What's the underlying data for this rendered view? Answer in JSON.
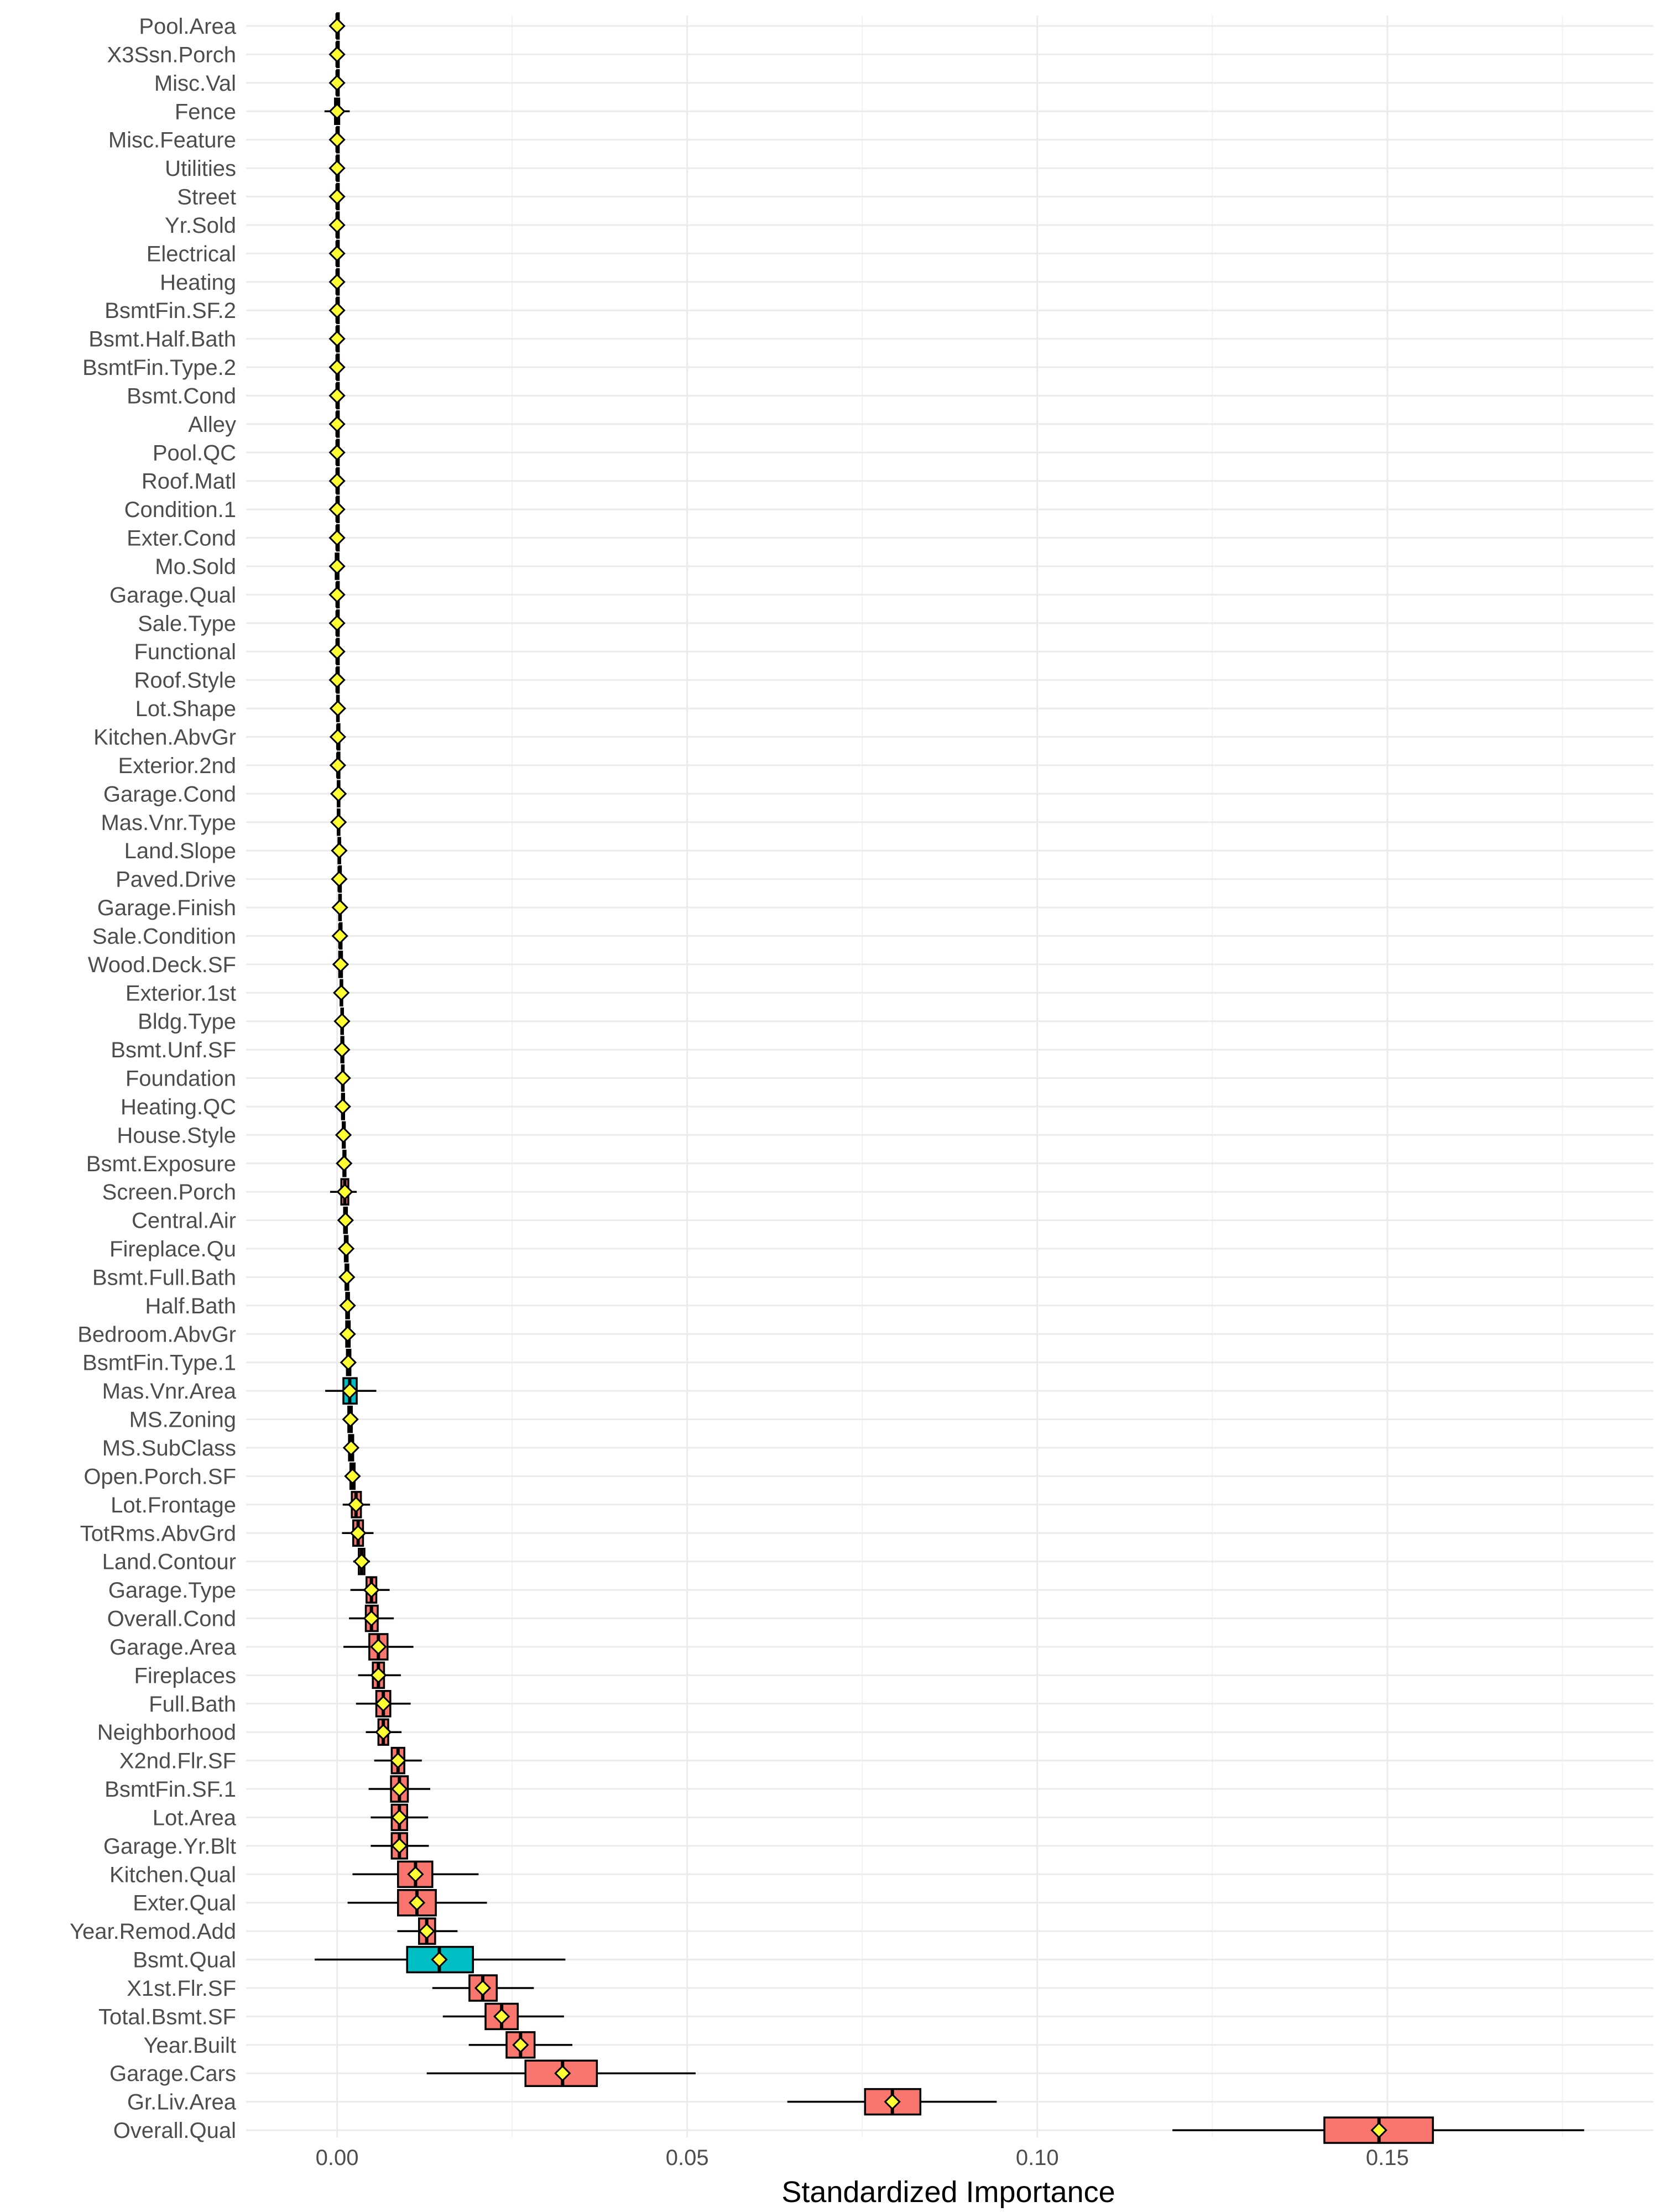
{
  "chart_data": {
    "type": "boxplot",
    "xlabel": "Standardized Importance",
    "ylabel": "",
    "xlim": [
      -0.013,
      0.188
    ],
    "xticks": [
      0.0,
      0.05,
      0.1,
      0.15
    ],
    "xtick_labels": [
      "0.00",
      "0.05",
      "0.10",
      "0.15"
    ],
    "colors": {
      "default": "#f8766d",
      "highlight": "#00bfc4",
      "mean_marker": "#ffff33"
    },
    "features": [
      {
        "name": "Pool.Area",
        "min": 0.0,
        "q1": 0.0,
        "median": 0.0,
        "q3": 0.0,
        "max": 0.0,
        "mean": 0.0,
        "group": "default"
      },
      {
        "name": "X3Ssn.Porch",
        "min": 0.0,
        "q1": 0.0,
        "median": 0.0,
        "q3": 0.0,
        "max": 0.0,
        "mean": 0.0,
        "group": "default"
      },
      {
        "name": "Misc.Val",
        "min": 0.0,
        "q1": 0.0,
        "median": 0.0,
        "q3": 0.0,
        "max": 0.0,
        "mean": 0.0,
        "group": "default"
      },
      {
        "name": "Fence",
        "min": -0.0018,
        "q1": -0.0003,
        "median": 0.0,
        "q3": 0.0003,
        "max": 0.0018,
        "mean": 0.0,
        "group": "default"
      },
      {
        "name": "Misc.Feature",
        "min": 0.0,
        "q1": 0.0,
        "median": 0.0,
        "q3": 0.0,
        "max": 0.0,
        "mean": 0.0,
        "group": "default"
      },
      {
        "name": "Utilities",
        "min": 0.0,
        "q1": 0.0,
        "median": 0.0,
        "q3": 0.0,
        "max": 0.0,
        "mean": 0.0,
        "group": "default"
      },
      {
        "name": "Street",
        "min": 0.0,
        "q1": 0.0,
        "median": 0.0,
        "q3": 0.0,
        "max": 0.0,
        "mean": 0.0,
        "group": "default"
      },
      {
        "name": "Yr.Sold",
        "min": 0.0,
        "q1": 0.0,
        "median": 0.0,
        "q3": 0.0,
        "max": 0.0,
        "mean": 0.0,
        "group": "default"
      },
      {
        "name": "Electrical",
        "min": 0.0,
        "q1": 0.0,
        "median": 0.0,
        "q3": 0.0,
        "max": 0.0,
        "mean": 0.0,
        "group": "default"
      },
      {
        "name": "Heating",
        "min": 0.0,
        "q1": 0.0,
        "median": 0.0,
        "q3": 0.0,
        "max": 0.0,
        "mean": 0.0,
        "group": "default"
      },
      {
        "name": "BsmtFin.SF.2",
        "min": 0.0,
        "q1": 0.0,
        "median": 0.0,
        "q3": 0.0,
        "max": 0.0,
        "mean": 0.0,
        "group": "default"
      },
      {
        "name": "Bsmt.Half.Bath",
        "min": 0.0,
        "q1": 0.0,
        "median": 0.0,
        "q3": 0.0,
        "max": 0.0,
        "mean": 0.0,
        "group": "default"
      },
      {
        "name": "BsmtFin.Type.2",
        "min": 0.0,
        "q1": 0.0,
        "median": 0.0,
        "q3": 0.0,
        "max": 0.0,
        "mean": 0.0,
        "group": "default"
      },
      {
        "name": "Bsmt.Cond",
        "min": 0.0,
        "q1": 0.0,
        "median": 0.0,
        "q3": 0.0,
        "max": 0.0,
        "mean": 0.0,
        "group": "default"
      },
      {
        "name": "Alley",
        "min": 0.0,
        "q1": 0.0,
        "median": 0.0,
        "q3": 0.0,
        "max": 0.0,
        "mean": 0.0,
        "group": "default"
      },
      {
        "name": "Pool.QC",
        "min": 0.0,
        "q1": 0.0,
        "median": 0.0,
        "q3": 0.0,
        "max": 0.0,
        "mean": 0.0,
        "group": "default"
      },
      {
        "name": "Roof.Matl",
        "min": 0.0,
        "q1": 0.0,
        "median": 0.0,
        "q3": 0.0,
        "max": 0.0,
        "mean": 0.0,
        "group": "default"
      },
      {
        "name": "Condition.1",
        "min": 0.0,
        "q1": 0.0,
        "median": 0.0,
        "q3": 0.0,
        "max": 0.0,
        "mean": 0.0,
        "group": "default"
      },
      {
        "name": "Exter.Cond",
        "min": 0.0,
        "q1": 0.0,
        "median": 0.0,
        "q3": 0.0,
        "max": 0.0,
        "mean": 0.0,
        "group": "default"
      },
      {
        "name": "Mo.Sold",
        "min": -0.0008,
        "q1": -0.0002,
        "median": 0.0,
        "q3": 0.0002,
        "max": 0.0008,
        "mean": 0.0,
        "group": "default"
      },
      {
        "name": "Garage.Qual",
        "min": 0.0,
        "q1": 0.0,
        "median": 0.0,
        "q3": 0.0,
        "max": 0.0,
        "mean": 0.0,
        "group": "default"
      },
      {
        "name": "Sale.Type",
        "min": 0.0,
        "q1": 0.0,
        "median": 0.0,
        "q3": 0.0,
        "max": 0.0,
        "mean": 0.0,
        "group": "default"
      },
      {
        "name": "Functional",
        "min": 0.0,
        "q1": 0.0,
        "median": 0.0,
        "q3": 0.0,
        "max": 0.0001,
        "mean": 0.0,
        "group": "default"
      },
      {
        "name": "Roof.Style",
        "min": 0.0,
        "q1": 0.0,
        "median": 0.0,
        "q3": 0.0,
        "max": 0.0001,
        "mean": 0.0,
        "group": "default"
      },
      {
        "name": "Lot.Shape",
        "min": 0.0,
        "q1": 0.0,
        "median": 0.0001,
        "q3": 0.0001,
        "max": 0.0002,
        "mean": 0.0001,
        "group": "default"
      },
      {
        "name": "Kitchen.AbvGr",
        "min": 0.0,
        "q1": 0.0001,
        "median": 0.0001,
        "q3": 0.0001,
        "max": 0.0002,
        "mean": 0.0001,
        "group": "default"
      },
      {
        "name": "Exterior.2nd",
        "min": 0.0,
        "q1": 0.0001,
        "median": 0.0001,
        "q3": 0.0002,
        "max": 0.0003,
        "mean": 0.0001,
        "group": "default"
      },
      {
        "name": "Garage.Cond",
        "min": 0.0,
        "q1": 0.0001,
        "median": 0.0002,
        "q3": 0.0002,
        "max": 0.0003,
        "mean": 0.0002,
        "group": "default"
      },
      {
        "name": "Mas.Vnr.Type",
        "min": 0.0,
        "q1": 0.0001,
        "median": 0.0002,
        "q3": 0.0002,
        "max": 0.0004,
        "mean": 0.0002,
        "group": "default"
      },
      {
        "name": "Land.Slope",
        "min": 0.0,
        "q1": 0.0002,
        "median": 0.0003,
        "q3": 0.0003,
        "max": 0.0005,
        "mean": 0.0003,
        "group": "default"
      },
      {
        "name": "Paved.Drive",
        "min": 0.0001,
        "q1": 0.0003,
        "median": 0.0003,
        "q3": 0.0004,
        "max": 0.0006,
        "mean": 0.0003,
        "group": "default"
      },
      {
        "name": "Garage.Finish",
        "min": 0.0001,
        "q1": 0.0003,
        "median": 0.0004,
        "q3": 0.0004,
        "max": 0.0007,
        "mean": 0.0004,
        "group": "default"
      },
      {
        "name": "Sale.Condition",
        "min": 0.0001,
        "q1": 0.0004,
        "median": 0.0004,
        "q3": 0.0005,
        "max": 0.0008,
        "mean": 0.0004,
        "group": "default"
      },
      {
        "name": "Wood.Deck.SF",
        "min": -0.0006,
        "q1": 0.0003,
        "median": 0.0005,
        "q3": 0.0007,
        "max": 0.0016,
        "mean": 0.0005,
        "group": "default"
      },
      {
        "name": "Exterior.1st",
        "min": 0.0002,
        "q1": 0.0005,
        "median": 0.0006,
        "q3": 0.0007,
        "max": 0.001,
        "mean": 0.0006,
        "group": "default"
      },
      {
        "name": "Bldg.Type",
        "min": 0.0003,
        "q1": 0.0006,
        "median": 0.0007,
        "q3": 0.0008,
        "max": 0.0011,
        "mean": 0.0007,
        "group": "default"
      },
      {
        "name": "Bsmt.Unf.SF",
        "min": 0.0003,
        "q1": 0.0006,
        "median": 0.0007,
        "q3": 0.0009,
        "max": 0.0012,
        "mean": 0.0007,
        "group": "default"
      },
      {
        "name": "Foundation",
        "min": 0.0004,
        "q1": 0.0007,
        "median": 0.0008,
        "q3": 0.0009,
        "max": 0.0013,
        "mean": 0.0008,
        "group": "default"
      },
      {
        "name": "Heating.QC",
        "min": 0.0004,
        "q1": 0.0007,
        "median": 0.0008,
        "q3": 0.001,
        "max": 0.0013,
        "mean": 0.0008,
        "group": "default"
      },
      {
        "name": "House.Style",
        "min": 0.0005,
        "q1": 0.0008,
        "median": 0.0009,
        "q3": 0.0011,
        "max": 0.0014,
        "mean": 0.0009,
        "group": "default"
      },
      {
        "name": "Bsmt.Exposure",
        "min": 0.0005,
        "q1": 0.0009,
        "median": 0.001,
        "q3": 0.0012,
        "max": 0.0015,
        "mean": 0.001,
        "group": "default"
      },
      {
        "name": "Screen.Porch",
        "min": -0.001,
        "q1": 0.0006,
        "median": 0.0011,
        "q3": 0.0016,
        "max": 0.0028,
        "mean": 0.0011,
        "group": "default"
      },
      {
        "name": "Central.Air",
        "min": 0.0007,
        "q1": 0.001,
        "median": 0.0012,
        "q3": 0.0014,
        "max": 0.0018,
        "mean": 0.0012,
        "group": "default"
      },
      {
        "name": "Fireplace.Qu",
        "min": 0.0007,
        "q1": 0.0011,
        "median": 0.0013,
        "q3": 0.0015,
        "max": 0.0019,
        "mean": 0.0013,
        "group": "default"
      },
      {
        "name": "Bsmt.Full.Bath",
        "min": 0.0008,
        "q1": 0.0012,
        "median": 0.0014,
        "q3": 0.0016,
        "max": 0.002,
        "mean": 0.0014,
        "group": "default"
      },
      {
        "name": "Half.Bath",
        "min": 0.0009,
        "q1": 0.0013,
        "median": 0.0015,
        "q3": 0.0017,
        "max": 0.0021,
        "mean": 0.0015,
        "group": "default"
      },
      {
        "name": "Bedroom.AbvGr",
        "min": 0.0009,
        "q1": 0.0013,
        "median": 0.0015,
        "q3": 0.0018,
        "max": 0.0022,
        "mean": 0.0015,
        "group": "default"
      },
      {
        "name": "BsmtFin.Type.1",
        "min": 0.001,
        "q1": 0.0014,
        "median": 0.0016,
        "q3": 0.0019,
        "max": 0.0023,
        "mean": 0.0016,
        "group": "default"
      },
      {
        "name": "Mas.Vnr.Area",
        "min": -0.0017,
        "q1": 0.0009,
        "median": 0.0018,
        "q3": 0.0028,
        "max": 0.0056,
        "mean": 0.0018,
        "group": "highlight"
      },
      {
        "name": "MS.Zoning",
        "min": 0.0012,
        "q1": 0.0016,
        "median": 0.0019,
        "q3": 0.0021,
        "max": 0.0026,
        "mean": 0.0019,
        "group": "default"
      },
      {
        "name": "MS.SubClass",
        "min": 0.0013,
        "q1": 0.0017,
        "median": 0.002,
        "q3": 0.0023,
        "max": 0.0028,
        "mean": 0.002,
        "group": "default"
      },
      {
        "name": "Open.Porch.SF",
        "min": 0.0013,
        "q1": 0.0019,
        "median": 0.0022,
        "q3": 0.0025,
        "max": 0.003,
        "mean": 0.0022,
        "group": "default"
      },
      {
        "name": "Lot.Frontage",
        "min": 0.0008,
        "q1": 0.0021,
        "median": 0.0027,
        "q3": 0.0034,
        "max": 0.0047,
        "mean": 0.0027,
        "group": "default"
      },
      {
        "name": "TotRms.AbvGrd",
        "min": 0.0007,
        "q1": 0.0023,
        "median": 0.003,
        "q3": 0.0037,
        "max": 0.0052,
        "mean": 0.003,
        "group": "default"
      },
      {
        "name": "Land.Contour",
        "min": 0.0023,
        "q1": 0.0031,
        "median": 0.0035,
        "q3": 0.0039,
        "max": 0.0047,
        "mean": 0.0035,
        "group": "default"
      },
      {
        "name": "Garage.Type",
        "min": 0.0019,
        "q1": 0.0042,
        "median": 0.0049,
        "q3": 0.0056,
        "max": 0.0075,
        "mean": 0.0049,
        "group": "default"
      },
      {
        "name": "Overall.Cond",
        "min": 0.0017,
        "q1": 0.0041,
        "median": 0.0049,
        "q3": 0.0058,
        "max": 0.0081,
        "mean": 0.0049,
        "group": "default"
      },
      {
        "name": "Garage.Area",
        "min": 0.0009,
        "q1": 0.0046,
        "median": 0.0059,
        "q3": 0.0072,
        "max": 0.0109,
        "mean": 0.0059,
        "group": "default"
      },
      {
        "name": "Fireplaces",
        "min": 0.003,
        "q1": 0.0051,
        "median": 0.0059,
        "q3": 0.0067,
        "max": 0.0091,
        "mean": 0.0059,
        "group": "default"
      },
      {
        "name": "Full.Bath",
        "min": 0.0027,
        "q1": 0.0056,
        "median": 0.0066,
        "q3": 0.0076,
        "max": 0.0105,
        "mean": 0.0066,
        "group": "default"
      },
      {
        "name": "Neighborhood",
        "min": 0.0041,
        "q1": 0.0059,
        "median": 0.0066,
        "q3": 0.0073,
        "max": 0.0092,
        "mean": 0.0066,
        "group": "default"
      },
      {
        "name": "X2nd.Flr.SF",
        "min": 0.0053,
        "q1": 0.0078,
        "median": 0.0087,
        "q3": 0.0096,
        "max": 0.0121,
        "mean": 0.0087,
        "group": "default"
      },
      {
        "name": "BsmtFin.SF.1",
        "min": 0.0045,
        "q1": 0.0077,
        "median": 0.0089,
        "q3": 0.0101,
        "max": 0.0133,
        "mean": 0.0089,
        "group": "default"
      },
      {
        "name": "Lot.Area",
        "min": 0.0048,
        "q1": 0.0078,
        "median": 0.0089,
        "q3": 0.01,
        "max": 0.013,
        "mean": 0.0089,
        "group": "default"
      },
      {
        "name": "Garage.Yr.Blt",
        "min": 0.0048,
        "q1": 0.0078,
        "median": 0.0089,
        "q3": 0.01,
        "max": 0.0131,
        "mean": 0.0089,
        "group": "default"
      },
      {
        "name": "Kitchen.Qual",
        "min": 0.0022,
        "q1": 0.0087,
        "median": 0.0112,
        "q3": 0.0136,
        "max": 0.0202,
        "mean": 0.0112,
        "group": "default"
      },
      {
        "name": "Exter.Qual",
        "min": 0.0015,
        "q1": 0.0087,
        "median": 0.0114,
        "q3": 0.0141,
        "max": 0.0214,
        "mean": 0.0114,
        "group": "default"
      },
      {
        "name": "Year.Remod.Add",
        "min": 0.0086,
        "q1": 0.0117,
        "median": 0.0128,
        "q3": 0.014,
        "max": 0.0172,
        "mean": 0.0128,
        "group": "default"
      },
      {
        "name": "Bsmt.Qual",
        "min": -0.0032,
        "q1": 0.01,
        "median": 0.0146,
        "q3": 0.0194,
        "max": 0.0326,
        "mean": 0.0146,
        "group": "highlight"
      },
      {
        "name": "X1st.Flr.SF",
        "min": 0.0136,
        "q1": 0.0189,
        "median": 0.0208,
        "q3": 0.0228,
        "max": 0.0281,
        "mean": 0.0208,
        "group": "default"
      },
      {
        "name": "Total.Bsmt.SF",
        "min": 0.0151,
        "q1": 0.0212,
        "median": 0.0235,
        "q3": 0.0258,
        "max": 0.0324,
        "mean": 0.0235,
        "group": "default"
      },
      {
        "name": "Year.Built",
        "min": 0.0188,
        "q1": 0.0242,
        "median": 0.0262,
        "q3": 0.0282,
        "max": 0.0336,
        "mean": 0.0262,
        "group": "default"
      },
      {
        "name": "Garage.Cars",
        "min": 0.0128,
        "q1": 0.0269,
        "median": 0.0322,
        "q3": 0.0371,
        "max": 0.0512,
        "mean": 0.0322,
        "group": "default"
      },
      {
        "name": "Gr.Liv.Area",
        "min": 0.0643,
        "q1": 0.0754,
        "median": 0.0793,
        "q3": 0.0833,
        "max": 0.0942,
        "mean": 0.0793,
        "group": "default"
      },
      {
        "name": "Overall.Qual",
        "min": 0.1193,
        "q1": 0.141,
        "median": 0.1488,
        "q3": 0.1565,
        "max": 0.1781,
        "mean": 0.1488,
        "group": "default"
      }
    ]
  }
}
